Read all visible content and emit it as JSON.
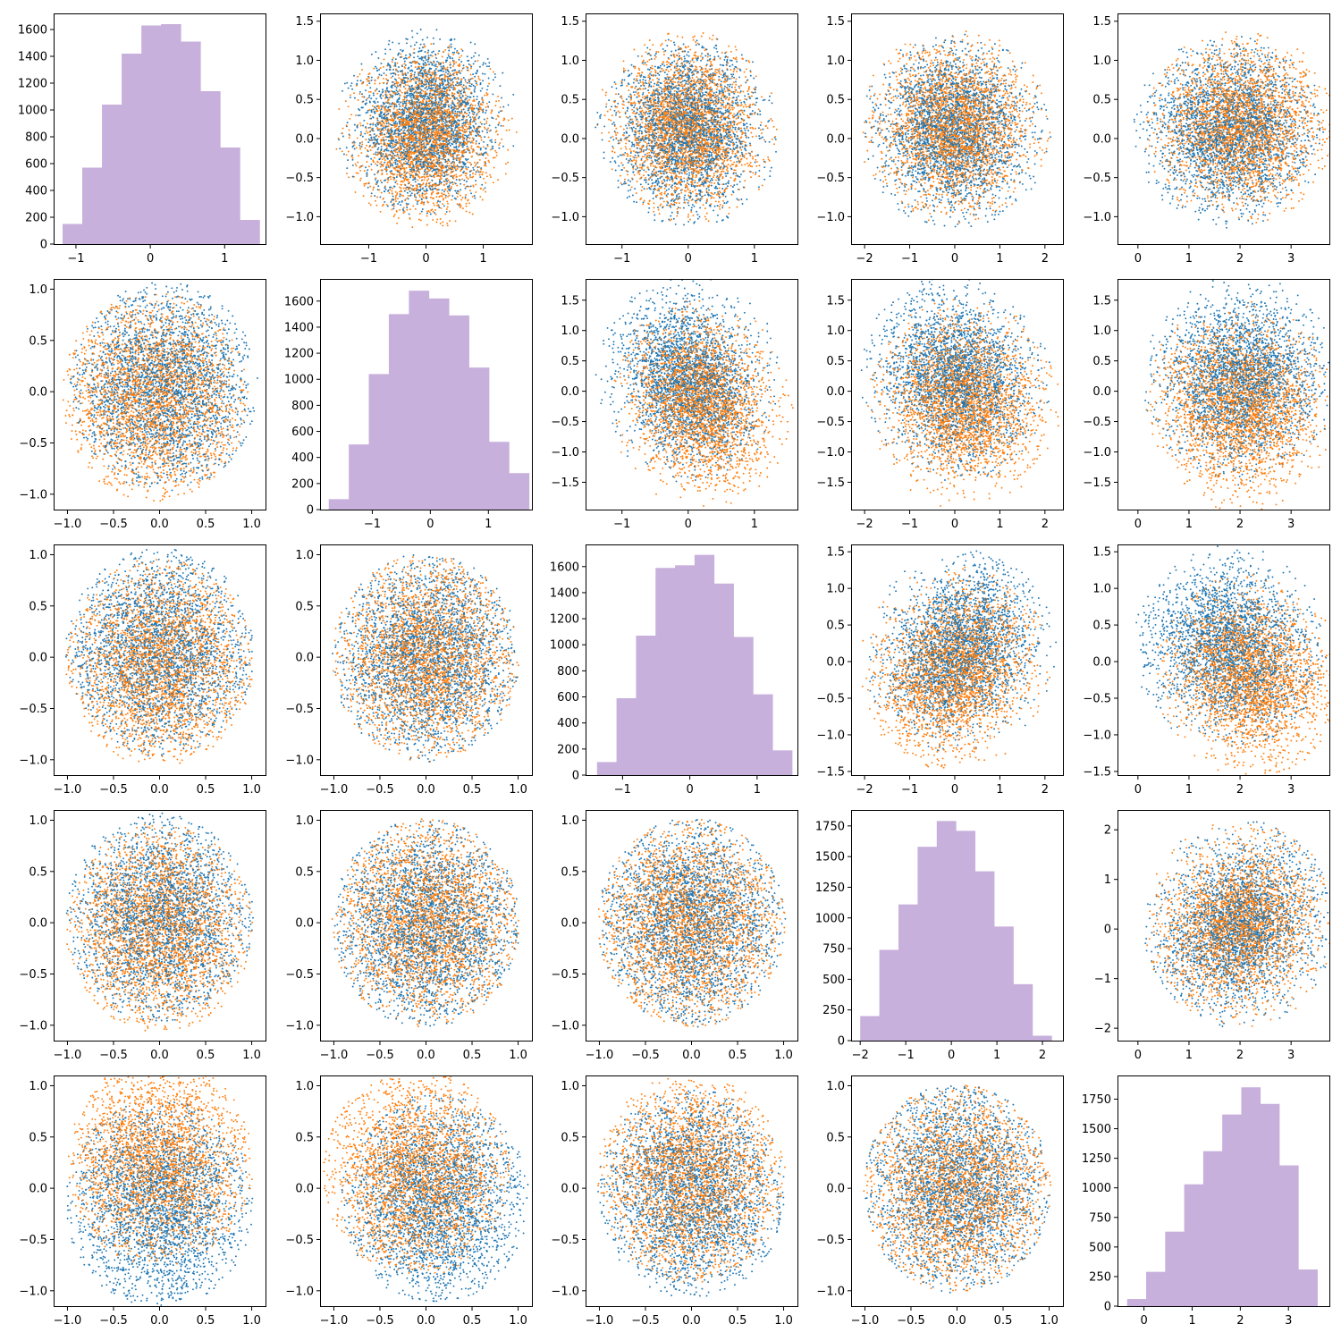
{
  "colors": {
    "series_blue": "#1f77b4",
    "series_orange": "#ff7f0e",
    "histogram_fill": "#c8b0dc",
    "axes": "#000000",
    "background": "#ffffff"
  },
  "chart_data": {
    "type": "pair-plot",
    "grid": false,
    "legend": "none",
    "title": "",
    "xlabel": "",
    "ylabel": "",
    "point_size": "small",
    "series": [
      {
        "color": "#1f77b4"
      },
      {
        "color": "#ff7f0e"
      }
    ],
    "panels": [
      {
        "row": 0,
        "col": 0,
        "type": "histogram",
        "xlim": [
          -1.3,
          1.55
        ],
        "ylim": [
          0,
          1720
        ],
        "xticks": [
          "-1",
          "0",
          "1"
        ],
        "yticks": [
          "0",
          "200",
          "400",
          "600",
          "800",
          "1000",
          "1200",
          "1400",
          "1600"
        ],
        "bin_edges": [
          -1.18,
          -0.915,
          -0.65,
          -0.385,
          -0.12,
          0.145,
          0.41,
          0.675,
          0.94,
          1.205,
          1.47
        ],
        "counts": [
          150,
          570,
          1040,
          1420,
          1630,
          1640,
          1510,
          1140,
          720,
          180
        ]
      },
      {
        "row": 0,
        "col": 1,
        "type": "scatter",
        "shape": "disk",
        "xlim": [
          -1.85,
          1.85
        ],
        "ylim": [
          -1.35,
          1.6
        ],
        "xticks": [
          "-1",
          "0",
          "1"
        ],
        "yticks": [
          "-1.0",
          "-0.5",
          "0.0",
          "0.5",
          "1.0",
          "1.5"
        ],
        "cx": [
          0,
          0
        ],
        "cy": [
          0.2,
          0.05
        ],
        "rx": 1.6,
        "ry": 1.2,
        "sx": 0.55,
        "sy": 0.5,
        "corr": 0.05
      },
      {
        "row": 0,
        "col": 2,
        "type": "scatter",
        "shape": "disk",
        "xlim": [
          -1.55,
          1.65
        ],
        "ylim": [
          -1.35,
          1.6
        ],
        "xticks": [
          "-1",
          "0",
          "1"
        ],
        "yticks": [
          "-1.0",
          "-0.5",
          "0.0",
          "0.5",
          "1.0",
          "1.5"
        ],
        "cx": [
          0,
          0
        ],
        "cy": [
          0.1,
          0.15
        ],
        "rx": 1.4,
        "ry": 1.25,
        "sx": 0.5,
        "sy": 0.5,
        "corr": 0.0
      },
      {
        "row": 0,
        "col": 3,
        "type": "scatter",
        "shape": "disk",
        "xlim": [
          -2.3,
          2.4
        ],
        "ylim": [
          -1.35,
          1.6
        ],
        "xticks": [
          "-2",
          "-1",
          "0",
          "1",
          "2"
        ],
        "yticks": [
          "-1.0",
          "-0.5",
          "0.0",
          "0.5",
          "1.0",
          "1.5"
        ],
        "cx": [
          0,
          0
        ],
        "cy": [
          0.1,
          0.15
        ],
        "rx": 2.15,
        "ry": 1.25,
        "sx": 0.8,
        "sy": 0.5,
        "corr": 0.0
      },
      {
        "row": 0,
        "col": 4,
        "type": "scatter",
        "shape": "disk",
        "xlim": [
          -0.4,
          3.75
        ],
        "ylim": [
          -1.35,
          1.6
        ],
        "xticks": [
          "0",
          "1",
          "2",
          "3"
        ],
        "yticks": [
          "-1.0",
          "-0.5",
          "0.0",
          "0.5",
          "1.0",
          "1.5"
        ],
        "cx": [
          1.8,
          2.0
        ],
        "cy": [
          0.1,
          0.15
        ],
        "rx": 1.9,
        "ry": 1.25,
        "sx": 0.75,
        "sy": 0.5,
        "corr": 0.0
      },
      {
        "row": 1,
        "col": 0,
        "type": "scatter",
        "shape": "disk",
        "xlim": [
          -1.15,
          1.15
        ],
        "ylim": [
          -1.15,
          1.1
        ],
        "xticks": [
          "-1.0",
          "-0.5",
          "0.0",
          "0.5",
          "1.0"
        ],
        "yticks": [
          "-1.0",
          "-0.5",
          "0.0",
          "0.5",
          "1.0"
        ],
        "cx": [
          0.05,
          -0.05
        ],
        "cy": [
          0.05,
          -0.05
        ],
        "rx": 1.02,
        "ry": 1.02,
        "sx": 0.5,
        "sy": 0.5,
        "corr": 0.0
      },
      {
        "row": 1,
        "col": 1,
        "type": "histogram",
        "xlim": [
          -1.9,
          1.75
        ],
        "ylim": [
          0,
          1770
        ],
        "xticks": [
          "-1",
          "0",
          "1"
        ],
        "yticks": [
          "0",
          "200",
          "400",
          "600",
          "800",
          "1000",
          "1200",
          "1400",
          "1600"
        ],
        "bin_edges": [
          -1.75,
          -1.405,
          -1.06,
          -0.715,
          -0.37,
          -0.025,
          0.32,
          0.665,
          1.01,
          1.355,
          1.7
        ],
        "counts": [
          80,
          500,
          1040,
          1500,
          1680,
          1620,
          1490,
          1090,
          520,
          280
        ]
      },
      {
        "row": 1,
        "col": 2,
        "type": "scatter",
        "shape": "disk",
        "xlim": [
          -1.55,
          1.65
        ],
        "ylim": [
          -1.95,
          1.85
        ],
        "xticks": [
          "-1",
          "0",
          "1"
        ],
        "yticks": [
          "-1.5",
          "-1.0",
          "-0.5",
          "0.0",
          "0.5",
          "1.0",
          "1.5"
        ],
        "cx": [
          0,
          0.2
        ],
        "cy": [
          0.2,
          -0.2
        ],
        "rx": 1.4,
        "ry": 1.75,
        "sx": 0.5,
        "sy": 0.65,
        "corr": -0.2
      },
      {
        "row": 1,
        "col": 3,
        "type": "scatter",
        "shape": "disk",
        "xlim": [
          -2.3,
          2.4
        ],
        "ylim": [
          -1.95,
          1.85
        ],
        "xticks": [
          "-2",
          "-1",
          "0",
          "1",
          "2"
        ],
        "yticks": [
          "-1.5",
          "-1.0",
          "-0.5",
          "0.0",
          "0.5",
          "1.0",
          "1.5"
        ],
        "cx": [
          0,
          0.2
        ],
        "cy": [
          0.2,
          -0.2
        ],
        "rx": 2.15,
        "ry": 1.75,
        "sx": 0.8,
        "sy": 0.65,
        "corr": -0.1
      },
      {
        "row": 1,
        "col": 4,
        "type": "scatter",
        "shape": "disk",
        "xlim": [
          -0.4,
          3.75
        ],
        "ylim": [
          -1.95,
          1.85
        ],
        "xticks": [
          "0",
          "1",
          "2",
          "3"
        ],
        "yticks": [
          "-1.5",
          "-1.0",
          "-0.5",
          "0.0",
          "0.5",
          "1.0",
          "1.5"
        ],
        "cx": [
          2.0,
          2.0
        ],
        "cy": [
          0.2,
          -0.25
        ],
        "rx": 1.9,
        "ry": 1.75,
        "sx": 0.75,
        "sy": 0.65,
        "corr": 0.0
      },
      {
        "row": 2,
        "col": 0,
        "type": "scatter",
        "shape": "disk",
        "xlim": [
          -1.15,
          1.15
        ],
        "ylim": [
          -1.15,
          1.1
        ],
        "xticks": [
          "-1.0",
          "-0.5",
          "0.0",
          "0.5",
          "1.0"
        ],
        "yticks": [
          "-1.0",
          "-0.5",
          "0.0",
          "0.5",
          "1.0"
        ],
        "cx": [
          0,
          0
        ],
        "cy": [
          0.05,
          -0.05
        ],
        "rx": 1.02,
        "ry": 1.02,
        "sx": 0.5,
        "sy": 0.5,
        "corr": 0.0
      },
      {
        "row": 2,
        "col": 1,
        "type": "scatter",
        "shape": "disk",
        "xlim": [
          -1.15,
          1.15
        ],
        "ylim": [
          -1.15,
          1.1
        ],
        "xticks": [
          "-1.0",
          "-0.5",
          "0.0",
          "0.5",
          "1.0"
        ],
        "yticks": [
          "-1.0",
          "-0.5",
          "0.0",
          "0.5",
          "1.0"
        ],
        "cx": [
          0,
          0
        ],
        "cy": [
          0,
          0
        ],
        "rx": 1.02,
        "ry": 1.02,
        "sx": 0.5,
        "sy": 0.5,
        "corr": 0.0
      },
      {
        "row": 2,
        "col": 2,
        "type": "histogram",
        "xlim": [
          -1.55,
          1.6
        ],
        "ylim": [
          0,
          1770
        ],
        "xticks": [
          "-1",
          "0",
          "1"
        ],
        "yticks": [
          "0",
          "200",
          "400",
          "600",
          "800",
          "1000",
          "1200",
          "1400",
          "1600"
        ],
        "bin_edges": [
          -1.38,
          -1.09,
          -0.8,
          -0.51,
          -0.22,
          0.07,
          0.36,
          0.65,
          0.94,
          1.23,
          1.52
        ],
        "counts": [
          100,
          590,
          1070,
          1590,
          1610,
          1690,
          1470,
          1060,
          620,
          190
        ]
      },
      {
        "row": 2,
        "col": 3,
        "type": "scatter",
        "shape": "disk",
        "xlim": [
          -2.3,
          2.4
        ],
        "ylim": [
          -1.55,
          1.6
        ],
        "xticks": [
          "-2",
          "-1",
          "0",
          "1",
          "2"
        ],
        "yticks": [
          "-1.5",
          "-1.0",
          "-0.5",
          "0.0",
          "0.5",
          "1.0",
          "1.5"
        ],
        "cx": [
          0.1,
          0
        ],
        "cy": [
          0.15,
          -0.1
        ],
        "rx": 2.15,
        "ry": 1.4,
        "sx": 0.8,
        "sy": 0.55,
        "corr": 0.25
      },
      {
        "row": 2,
        "col": 4,
        "type": "scatter",
        "shape": "disk",
        "xlim": [
          -0.4,
          3.75
        ],
        "ylim": [
          -1.55,
          1.6
        ],
        "xticks": [
          "0",
          "1",
          "2",
          "3"
        ],
        "yticks": [
          "-1.5",
          "-1.0",
          "-0.5",
          "0.0",
          "0.5",
          "1.0",
          "1.5"
        ],
        "cx": [
          1.8,
          2.2
        ],
        "cy": [
          0.2,
          -0.2
        ],
        "rx": 1.9,
        "ry": 1.4,
        "sx": 0.75,
        "sy": 0.55,
        "corr": -0.15
      },
      {
        "row": 3,
        "col": 0,
        "type": "scatter",
        "shape": "disk",
        "xlim": [
          -1.15,
          1.15
        ],
        "ylim": [
          -1.15,
          1.1
        ],
        "xticks": [
          "-1.0",
          "-0.5",
          "0.0",
          "0.5",
          "1.0"
        ],
        "yticks": [
          "-1.0",
          "-0.5",
          "0.0",
          "0.5",
          "1.0"
        ],
        "cx": [
          0,
          0
        ],
        "cy": [
          0.05,
          -0.05
        ],
        "rx": 1.02,
        "ry": 1.02,
        "sx": 0.5,
        "sy": 0.5,
        "corr": 0.0
      },
      {
        "row": 3,
        "col": 1,
        "type": "scatter",
        "shape": "disk",
        "xlim": [
          -1.15,
          1.15
        ],
        "ylim": [
          -1.15,
          1.1
        ],
        "xticks": [
          "-1.0",
          "-0.5",
          "0.0",
          "0.5",
          "1.0"
        ],
        "yticks": [
          "-1.0",
          "-0.5",
          "0.0",
          "0.5",
          "1.0"
        ],
        "cx": [
          0,
          0
        ],
        "cy": [
          0,
          0
        ],
        "rx": 1.02,
        "ry": 1.02,
        "sx": 0.5,
        "sy": 0.5,
        "corr": 0.0
      },
      {
        "row": 3,
        "col": 2,
        "type": "scatter",
        "shape": "disk",
        "xlim": [
          -1.15,
          1.15
        ],
        "ylim": [
          -1.15,
          1.1
        ],
        "xticks": [
          "-1.0",
          "-0.5",
          "0.0",
          "0.5",
          "1.0"
        ],
        "yticks": [
          "-1.0",
          "-0.5",
          "0.0",
          "0.5",
          "1.0"
        ],
        "cx": [
          0,
          0
        ],
        "cy": [
          0,
          0
        ],
        "rx": 1.02,
        "ry": 1.02,
        "sx": 0.5,
        "sy": 0.5,
        "corr": 0.0
      },
      {
        "row": 3,
        "col": 3,
        "type": "histogram",
        "xlim": [
          -2.2,
          2.45
        ],
        "ylim": [
          0,
          1880
        ],
        "xticks": [
          "-2",
          "-1",
          "0",
          "1",
          "2"
        ],
        "yticks": [
          "0",
          "250",
          "500",
          "750",
          "1000",
          "1250",
          "1500",
          "1750"
        ],
        "bin_edges": [
          -2.0,
          -1.58,
          -1.16,
          -0.74,
          -0.32,
          0.1,
          0.52,
          0.94,
          1.36,
          1.78,
          2.2
        ],
        "counts": [
          200,
          740,
          1110,
          1580,
          1790,
          1710,
          1380,
          930,
          460,
          40
        ]
      },
      {
        "row": 3,
        "col": 4,
        "type": "scatter",
        "shape": "disk",
        "xlim": [
          -0.4,
          3.75
        ],
        "ylim": [
          -2.25,
          2.4
        ],
        "xticks": [
          "0",
          "1",
          "2",
          "3"
        ],
        "yticks": [
          "-2",
          "-1",
          "0",
          "1",
          "2"
        ],
        "cx": [
          2.0,
          2.0
        ],
        "cy": [
          0.1,
          0.1
        ],
        "rx": 1.9,
        "ry": 2.1,
        "sx": 0.75,
        "sy": 0.8,
        "corr": 0.2
      },
      {
        "row": 4,
        "col": 0,
        "type": "scatter",
        "shape": "disk",
        "xlim": [
          -1.15,
          1.15
        ],
        "ylim": [
          -1.15,
          1.1
        ],
        "xticks": [
          "-1.0",
          "-0.5",
          "0.0",
          "0.5",
          "1.0"
        ],
        "yticks": [
          "-1.0",
          "-0.5",
          "0.0",
          "0.5",
          "1.0"
        ],
        "cx": [
          0,
          0
        ],
        "cy": [
          -0.15,
          0.25
        ],
        "rx": 1.02,
        "ry": 1.02,
        "sx": 0.5,
        "sy": 0.5,
        "corr": 0.0
      },
      {
        "row": 4,
        "col": 1,
        "type": "scatter",
        "shape": "disk",
        "xlim": [
          -1.15,
          1.15
        ],
        "ylim": [
          -1.15,
          1.1
        ],
        "xticks": [
          "-1.0",
          "-0.5",
          "0.0",
          "0.5",
          "1.0"
        ],
        "yticks": [
          "-1.0",
          "-0.5",
          "0.0",
          "0.5",
          "1.0"
        ],
        "cx": [
          0.1,
          -0.1
        ],
        "cy": [
          -0.1,
          0.15
        ],
        "rx": 1.02,
        "ry": 1.02,
        "sx": 0.5,
        "sy": 0.5,
        "corr": 0.0
      },
      {
        "row": 4,
        "col": 2,
        "type": "scatter",
        "shape": "disk",
        "xlim": [
          -1.15,
          1.15
        ],
        "ylim": [
          -1.15,
          1.1
        ],
        "xticks": [
          "-1.0",
          "-0.5",
          "0.0",
          "0.5",
          "1.0"
        ],
        "yticks": [
          "-1.0",
          "-0.5",
          "0.0",
          "0.5",
          "1.0"
        ],
        "cx": [
          0,
          0
        ],
        "cy": [
          -0.05,
          0.1
        ],
        "rx": 1.02,
        "ry": 1.02,
        "sx": 0.5,
        "sy": 0.5,
        "corr": 0.0
      },
      {
        "row": 4,
        "col": 3,
        "type": "scatter",
        "shape": "disk",
        "xlim": [
          -1.15,
          1.15
        ],
        "ylim": [
          -1.15,
          1.1
        ],
        "xticks": [
          "-1.0",
          "-0.5",
          "0.0",
          "0.5",
          "1.0"
        ],
        "yticks": [
          "-1.0",
          "-0.5",
          "0.0",
          "0.5",
          "1.0"
        ],
        "cx": [
          0,
          0
        ],
        "cy": [
          0,
          0
        ],
        "rx": 1.02,
        "ry": 1.02,
        "sx": 0.5,
        "sy": 0.5,
        "corr": 0.0
      },
      {
        "row": 4,
        "col": 4,
        "type": "histogram",
        "xlim": [
          -0.55,
          3.85
        ],
        "ylim": [
          0,
          1950
        ],
        "xticks": [
          "0",
          "1",
          "2",
          "3"
        ],
        "yticks": [
          "0",
          "250",
          "500",
          "750",
          "1000",
          "1250",
          "1500",
          "1750"
        ],
        "bin_edges": [
          -0.35,
          0.045,
          0.44,
          0.835,
          1.23,
          1.625,
          2.02,
          2.415,
          2.81,
          3.205,
          3.6
        ],
        "counts": [
          60,
          290,
          630,
          1030,
          1310,
          1620,
          1850,
          1710,
          1190,
          310
        ]
      }
    ]
  }
}
